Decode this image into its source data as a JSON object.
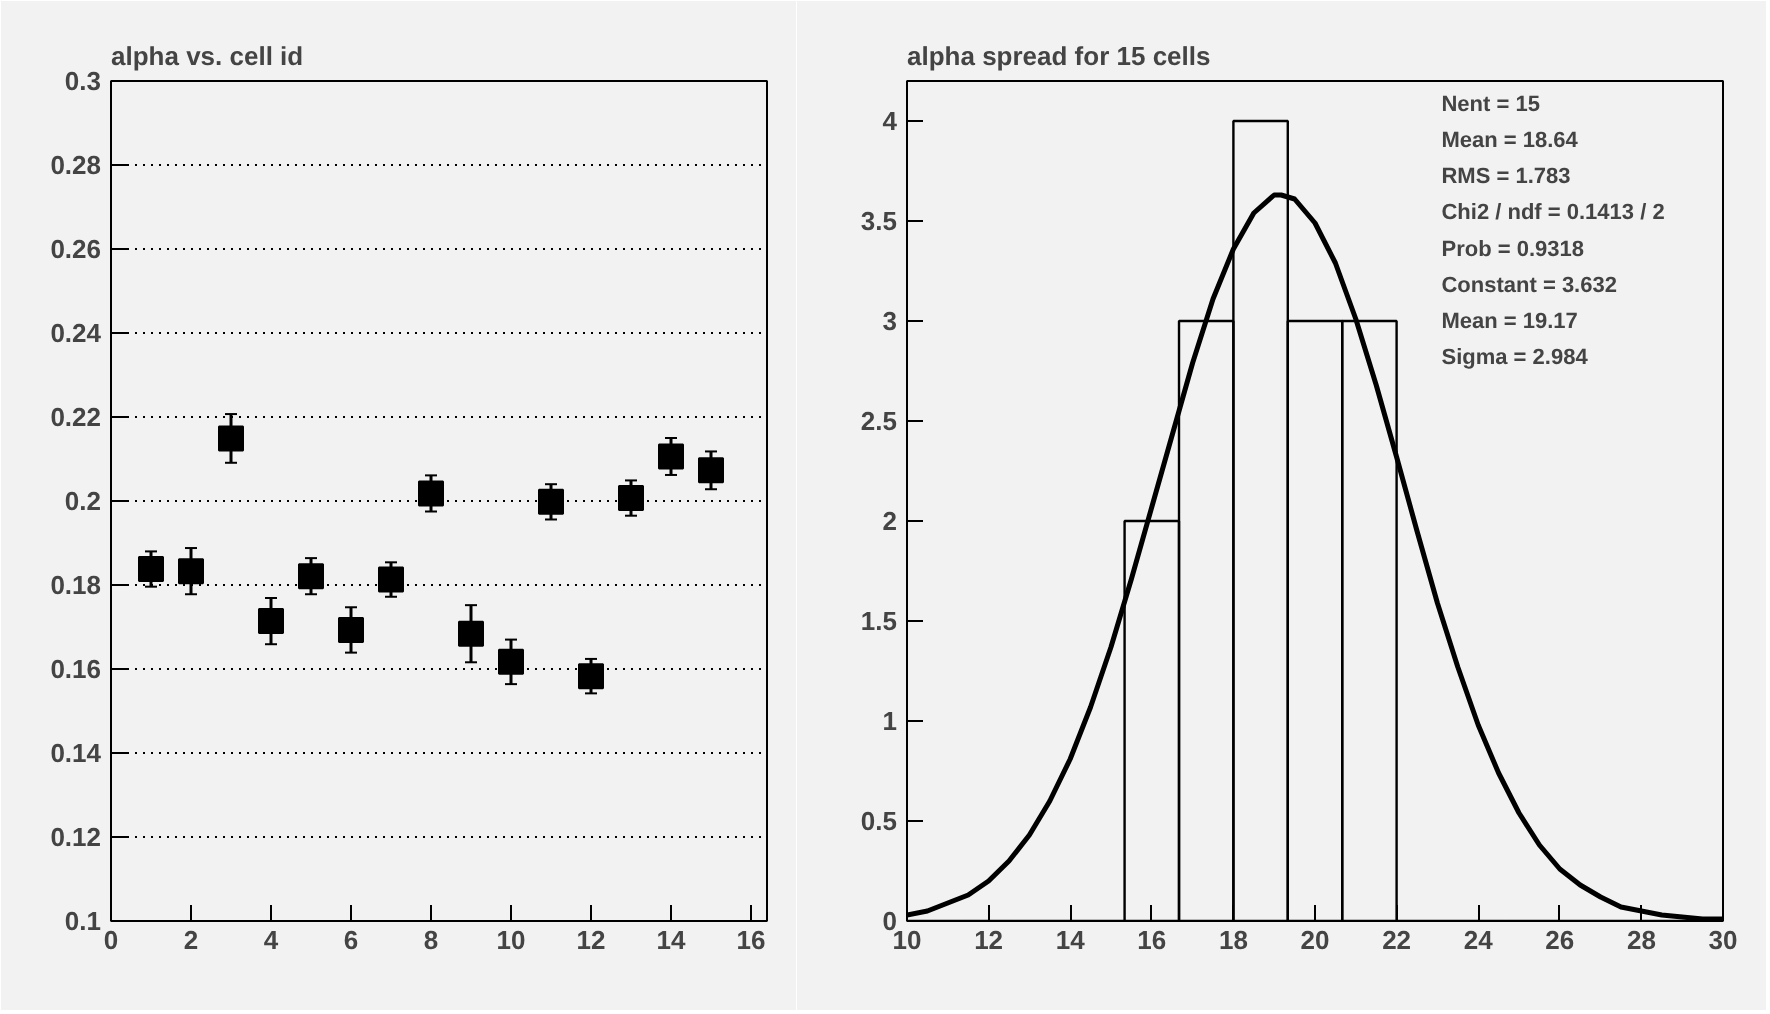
{
  "chart_data": [
    {
      "type": "scatter",
      "title": "alpha vs. cell id",
      "x": [
        1,
        2,
        3,
        4,
        5,
        6,
        7,
        8,
        9,
        10,
        11,
        12,
        13,
        14,
        15
      ],
      "values": [
        0.1838,
        0.1833,
        0.2149,
        0.1714,
        0.1821,
        0.1693,
        0.1813,
        0.2018,
        0.1684,
        0.1617,
        0.1998,
        0.1583,
        0.2007,
        0.2106,
        0.2073
      ],
      "errors": [
        0.0042,
        0.0055,
        0.0058,
        0.0055,
        0.0043,
        0.0054,
        0.0041,
        0.0043,
        0.0068,
        0.0053,
        0.0042,
        0.0041,
        0.0042,
        0.0044,
        0.0045
      ],
      "color": "#000000",
      "marker": "square",
      "grid": "y",
      "xlim": [
        0,
        16.4
      ],
      "ylim": [
        0.1,
        0.3
      ],
      "xticks": [
        0,
        2,
        4,
        6,
        8,
        10,
        12,
        14,
        16
      ],
      "yticks": [
        0.1,
        0.12,
        0.14,
        0.16,
        0.18,
        0.2,
        0.22,
        0.24,
        0.26,
        0.28,
        0.3
      ]
    },
    {
      "type": "histogram",
      "title": "alpha spread for 15 cells",
      "bins": [
        10,
        11.333,
        12.667,
        14,
        15.333,
        16.667,
        18,
        19.333,
        20.667,
        22,
        23.333,
        24.667,
        26,
        27.333,
        28.667,
        30
      ],
      "values": [
        0,
        0,
        0,
        0,
        2,
        3,
        4,
        3,
        3,
        0,
        0,
        0,
        0,
        0,
        0
      ],
      "color": "#000000",
      "series": [
        {
          "type": "line",
          "color": "#000000",
          "x": [
            10,
            10.5,
            11,
            11.5,
            12,
            12.5,
            13,
            13.5,
            14,
            14.5,
            15,
            15.5,
            16,
            16.5,
            17,
            17.5,
            18,
            18.5,
            19,
            19.17,
            19.5,
            20,
            20.5,
            21,
            21.5,
            22,
            22.5,
            23,
            23.5,
            24,
            24.5,
            25,
            25.5,
            26,
            26.5,
            27,
            27.5,
            28,
            28.5,
            29,
            29.5,
            30
          ],
          "values": [
            0.03,
            0.05,
            0.09,
            0.13,
            0.2,
            0.3,
            0.43,
            0.6,
            0.81,
            1.07,
            1.37,
            1.71,
            2.07,
            2.43,
            2.79,
            3.11,
            3.36,
            3.54,
            3.63,
            3.63,
            3.61,
            3.49,
            3.29,
            3.01,
            2.68,
            2.32,
            1.95,
            1.59,
            1.27,
            0.98,
            0.74,
            0.54,
            0.38,
            0.26,
            0.18,
            0.12,
            0.07,
            0.05,
            0.03,
            0.02,
            0.01,
            0.01
          ]
        }
      ],
      "annotations": [
        "Nent = 15",
        "Mean  =  18.64",
        "RMS   =  1.783",
        "Chi2 / ndf = 0.1413 / 2",
        "Prob  = 0.9318",
        "Constant = 3.632",
        "Mean     = 19.17",
        "Sigma    = 2.984"
      ],
      "grid": false,
      "xlim": [
        10,
        30
      ],
      "ylim": [
        0,
        4.2
      ],
      "xticks": [
        10,
        12,
        14,
        16,
        18,
        20,
        22,
        24,
        26,
        28,
        30
      ],
      "yticks": [
        0,
        0.5,
        1,
        1.5,
        2,
        2.5,
        3,
        3.5,
        4
      ]
    }
  ]
}
